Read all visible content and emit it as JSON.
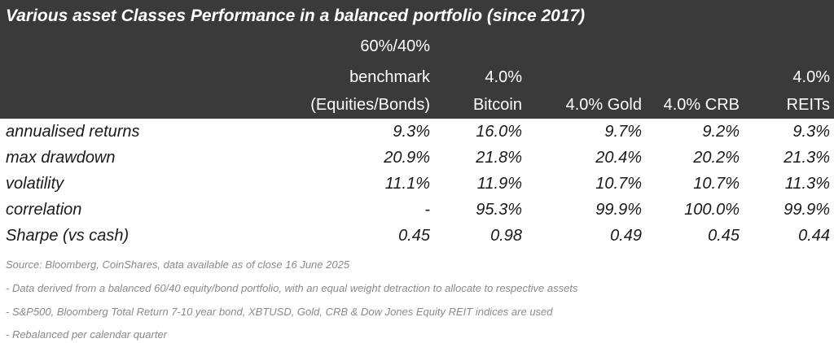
{
  "title": "Various asset Classes Performance in a balanced portfolio (since 2017)",
  "columns": [
    {
      "lines": [
        "60%/40%",
        "benchmark",
        "(Equities/Bonds)"
      ]
    },
    {
      "lines": [
        "4.0%",
        "Bitcoin"
      ]
    },
    {
      "lines": [
        "4.0% Gold"
      ]
    },
    {
      "lines": [
        "4.0% CRB"
      ]
    },
    {
      "lines": [
        "4.0%",
        "REITs"
      ]
    }
  ],
  "rows": [
    {
      "label": "annualised returns",
      "values": [
        "9.3%",
        "16.0%",
        "9.7%",
        "9.2%",
        "9.3%"
      ]
    },
    {
      "label": "max drawdown",
      "values": [
        "20.9%",
        "21.8%",
        "20.4%",
        "20.2%",
        "21.3%"
      ]
    },
    {
      "label": "volatility",
      "values": [
        "11.1%",
        "11.9%",
        "10.7%",
        "10.7%",
        "11.3%"
      ]
    },
    {
      "label": "correlation",
      "values": [
        "-",
        "95.3%",
        "99.9%",
        "100.0%",
        "99.9%"
      ]
    },
    {
      "label": "Sharpe (vs cash)",
      "values": [
        "0.45",
        "0.98",
        "0.49",
        "0.45",
        "0.44"
      ]
    }
  ],
  "notes": [
    "Source: Bloomberg, CoinShares, data available as of close 16 June 2025",
    "- Data derived from a balanced 60/40 equity/bond portfolio, with an equal weight detraction to allocate to respective assets",
    "- S&P500, Bloomberg Total Return 7-10 year bond, XBTUSD, Gold, CRB & Dow Jones Equity REIT indices are used",
    "- Rebalanced per calendar quarter"
  ],
  "colors": {
    "header_bg": "#3a3a3a",
    "header_text": "#ffffff",
    "body_text": "#1a1a1a",
    "note_text": "#8a8a8a"
  }
}
